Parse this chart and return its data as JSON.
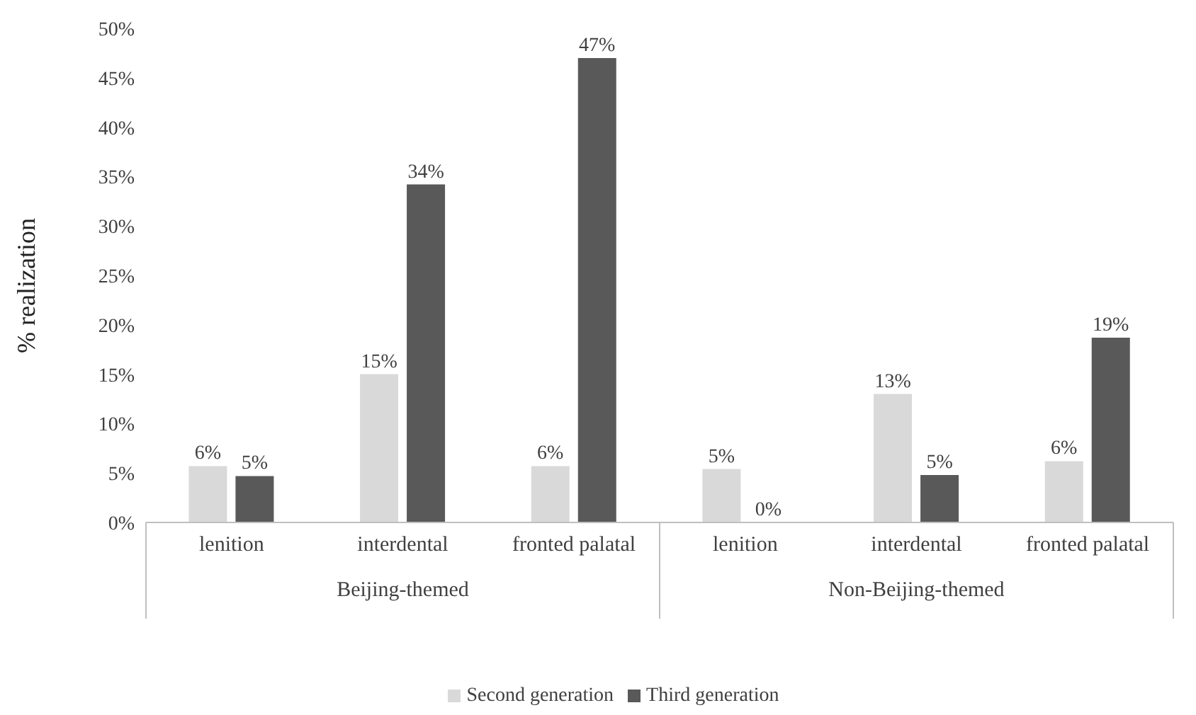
{
  "chart_data": {
    "type": "bar",
    "ylabel": "% realization",
    "categories": [
      "lenition",
      "interdental",
      "fronted palatal",
      "lenition",
      "interdental",
      "fronted palatal"
    ],
    "series": [
      {
        "name": "Second generation",
        "color": "#d9d9d9",
        "values": [
          5.7,
          15,
          5.7,
          5.4,
          13,
          6.2
        ],
        "value_labels": [
          "6%",
          "15%",
          "6%",
          "5%",
          "13%",
          "6%"
        ]
      },
      {
        "name": "Third generation",
        "color": "#595959",
        "values": [
          4.7,
          34.2,
          47,
          0,
          4.8,
          18.7
        ],
        "value_labels": [
          "5%",
          "34%",
          "47%",
          "0%",
          "5%",
          "19%"
        ]
      }
    ],
    "ylim": [
      0,
      50
    ],
    "yticks": [
      {
        "value": 0,
        "label": "0%"
      },
      {
        "value": 5,
        "label": "5%"
      },
      {
        "value": 10,
        "label": "10%"
      },
      {
        "value": 15,
        "label": "15%"
      },
      {
        "value": 20,
        "label": "20%"
      },
      {
        "value": 25,
        "label": "25%"
      },
      {
        "value": 30,
        "label": "30%"
      },
      {
        "value": 35,
        "label": "35%"
      },
      {
        "value": 40,
        "label": "40%"
      },
      {
        "value": 45,
        "label": "45%"
      },
      {
        "value": 50,
        "label": "50%"
      }
    ],
    "annotations": [
      "Beijing-themed",
      "Non-Beijing-themed"
    ],
    "legend": "bottom"
  }
}
